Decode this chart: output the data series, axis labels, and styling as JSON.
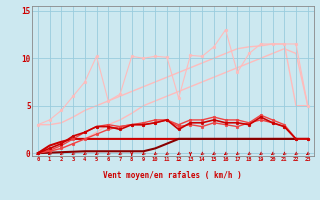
{
  "x": [
    0,
    1,
    2,
    3,
    4,
    5,
    6,
    7,
    8,
    9,
    10,
    11,
    12,
    13,
    14,
    15,
    16,
    17,
    18,
    19,
    20,
    21,
    22,
    23
  ],
  "background_color": "#cce8f0",
  "grid_color": "#99ccdd",
  "xlabel": "Vent moyen/en rafales ( km/h )",
  "xlabel_color": "#cc0000",
  "tick_color": "#cc0000",
  "ylim": [
    -0.3,
    15.5
  ],
  "xlim": [
    -0.5,
    23.5
  ],
  "yticks": [
    0,
    5,
    10,
    15
  ],
  "series": [
    {
      "y": [
        3.0,
        3.0,
        3.2,
        3.8,
        4.5,
        5.0,
        5.5,
        6.0,
        6.5,
        7.0,
        7.5,
        8.0,
        8.5,
        9.0,
        9.5,
        10.0,
        10.5,
        11.0,
        11.2,
        11.3,
        11.5,
        11.5,
        5.0,
        5.0
      ],
      "color": "#ffbbbb",
      "lw": 1.0,
      "marker": null,
      "zorder": 1
    },
    {
      "y": [
        3.0,
        3.5,
        4.5,
        6.0,
        7.5,
        10.2,
        5.5,
        6.2,
        10.2,
        10.0,
        10.2,
        10.1,
        5.8,
        10.3,
        10.2,
        11.2,
        13.0,
        8.5,
        10.5,
        11.5,
        11.5,
        11.5,
        11.5,
        5.0
      ],
      "color": "#ffbbbb",
      "lw": 0.8,
      "marker": "o",
      "markersize": 1.8,
      "zorder": 2
    },
    {
      "y": [
        0.0,
        0.2,
        0.5,
        1.0,
        1.5,
        2.2,
        3.0,
        3.5,
        4.2,
        5.0,
        5.5,
        6.0,
        6.5,
        7.0,
        7.5,
        8.0,
        8.5,
        9.0,
        9.5,
        10.0,
        10.5,
        11.0,
        10.5,
        5.0
      ],
      "color": "#ffbbbb",
      "lw": 1.0,
      "marker": null,
      "zorder": 1
    },
    {
      "y": [
        0.0,
        0.3,
        0.8,
        1.5,
        2.2,
        2.8,
        3.0,
        2.8,
        3.0,
        3.0,
        3.2,
        3.5,
        2.8,
        3.0,
        2.8,
        3.2,
        3.0,
        2.8,
        3.2,
        3.5,
        3.2,
        2.8,
        1.5,
        1.5
      ],
      "color": "#ee4444",
      "lw": 1.0,
      "marker": "o",
      "markersize": 1.8,
      "zorder": 3
    },
    {
      "y": [
        0.0,
        0.2,
        0.5,
        1.0,
        1.5,
        2.0,
        2.5,
        2.8,
        3.0,
        3.2,
        3.5,
        3.5,
        3.0,
        3.5,
        3.5,
        3.8,
        3.5,
        3.5,
        3.2,
        4.0,
        3.5,
        3.0,
        1.5,
        1.5
      ],
      "color": "#ee4444",
      "lw": 1.0,
      "marker": "o",
      "markersize": 1.8,
      "zorder": 3
    },
    {
      "y": [
        0.0,
        0.8,
        1.2,
        1.5,
        1.5,
        1.5,
        1.5,
        1.5,
        1.5,
        1.5,
        1.5,
        1.5,
        1.5,
        1.5,
        1.5,
        1.5,
        1.5,
        1.5,
        1.5,
        1.5,
        1.5,
        1.5,
        1.5,
        1.5
      ],
      "color": "#cc0000",
      "lw": 1.5,
      "marker": null,
      "zorder": 2
    },
    {
      "y": [
        0.0,
        0.5,
        1.0,
        1.8,
        2.2,
        2.8,
        2.8,
        2.5,
        3.0,
        3.0,
        3.2,
        3.5,
        2.5,
        3.2,
        3.2,
        3.5,
        3.2,
        3.2,
        3.0,
        3.8,
        3.2,
        2.8,
        1.5,
        1.5
      ],
      "color": "#cc0000",
      "lw": 1.2,
      "marker": "o",
      "markersize": 1.8,
      "zorder": 3
    },
    {
      "y": [
        0.0,
        0.05,
        0.1,
        0.15,
        0.2,
        0.2,
        0.2,
        0.2,
        0.2,
        0.2,
        0.5,
        1.0,
        1.5,
        1.5,
        1.5,
        1.5,
        1.5,
        1.5,
        1.5,
        1.5,
        1.5,
        1.5,
        1.5,
        1.5
      ],
      "color": "#880000",
      "lw": 1.5,
      "marker": null,
      "zorder": 2
    }
  ],
  "arrow_color": "#cc0000",
  "arrow_angles_deg": [
    225,
    225,
    225,
    225,
    225,
    225,
    225,
    225,
    270,
    225,
    225,
    225,
    225,
    270,
    225,
    225,
    225,
    225,
    225,
    225,
    225,
    225,
    225,
    225
  ]
}
